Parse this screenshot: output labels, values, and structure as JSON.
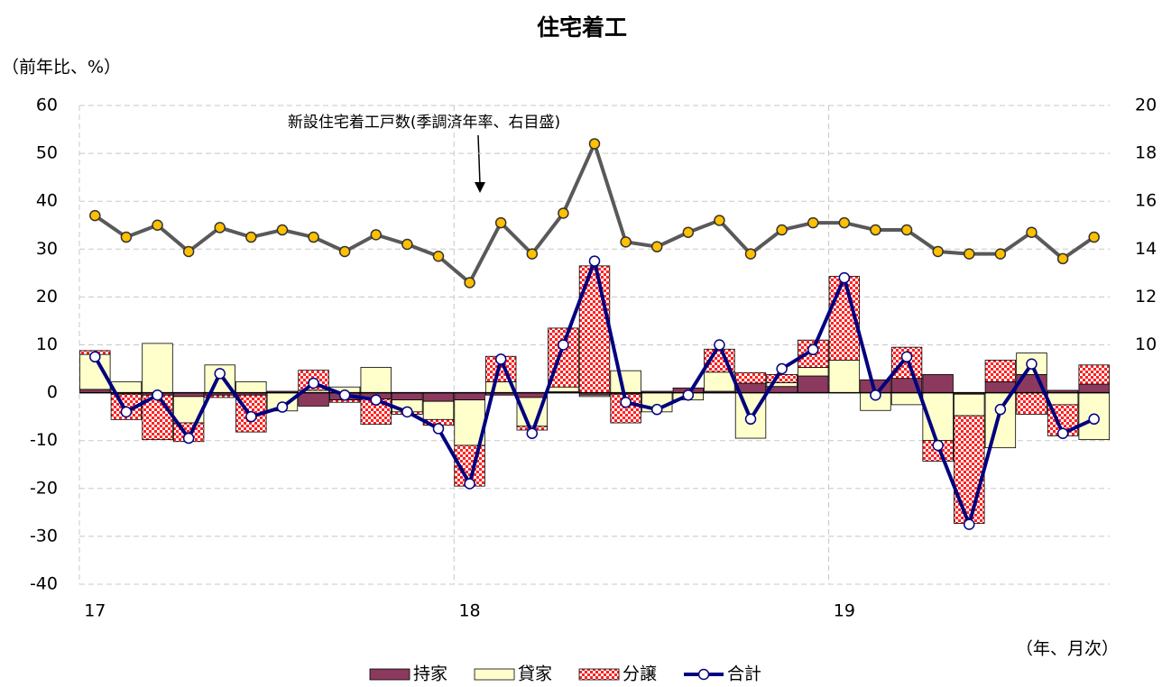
{
  "chart_data": {
    "type": "bar",
    "title": "住宅着工",
    "y_label": "（前年比、%）",
    "x_label": "（年、月次）",
    "annotation": "新設住宅着工戸数(季調済年率、右目盛)",
    "categories": [
      "17",
      null,
      null,
      null,
      null,
      null,
      null,
      null,
      null,
      null,
      null,
      null,
      "18",
      null,
      null,
      null,
      null,
      null,
      null,
      null,
      null,
      null,
      null,
      null,
      "19",
      null,
      null,
      null,
      null,
      null,
      null,
      null,
      null
    ],
    "series": [
      {
        "name": "持家",
        "type": "bar",
        "color": "#8b3a5e",
        "values": [
          0.7,
          -0.3,
          -0.5,
          -0.8,
          -0.5,
          -0.5,
          0.3,
          -2.8,
          -1.5,
          -1.3,
          -1.5,
          -1.8,
          -1.5,
          -0.5,
          -1,
          0.2,
          -0.5,
          -0.3,
          0.3,
          1.0,
          0.3,
          2.0,
          1.3,
          3.5,
          0,
          2.7,
          3.0,
          3.8,
          -0.3,
          2.3,
          3.8,
          0.5,
          1.8
        ]
      },
      {
        "name": "貸家",
        "type": "bar",
        "color": "#ffffcc",
        "values": [
          7.3,
          2.3,
          10.3,
          -5.5,
          5.8,
          2.3,
          -3.8,
          0.5,
          1.2,
          5.3,
          -2.5,
          -3.8,
          -9.5,
          2.3,
          -6,
          1.0,
          -0.3,
          4.6,
          -4,
          -1.5,
          4,
          -9.5,
          0.8,
          1.8,
          6.8,
          -3.7,
          -2.5,
          -10,
          -4.5,
          -11.5,
          4.5,
          -2.5,
          -9.8
        ]
      },
      {
        "name": "分譲",
        "type": "bar",
        "color": "#ff2020",
        "pattern": "checker",
        "values": [
          0.8,
          -5.3,
          -9.3,
          -3.9,
          -0.5,
          -7.7,
          0,
          4.2,
          -0.5,
          -5.3,
          -0.5,
          -1.2,
          -8.5,
          5.3,
          -0.8,
          12.3,
          26.5,
          -6,
          0,
          0,
          4.8,
          2.2,
          1.7,
          5.7,
          17.5,
          0,
          6.5,
          -4.3,
          -22.5,
          4.5,
          -4.5,
          -6.5,
          4
        ]
      },
      {
        "name": "合計",
        "type": "line",
        "color": "#000080",
        "marker_color": "#ffffff",
        "values": [
          7.5,
          -4,
          -0.5,
          -9.5,
          4,
          -5,
          -3,
          2,
          -0.5,
          -1.5,
          -4,
          -7.5,
          -19,
          7,
          -8.5,
          10,
          27.5,
          -2,
          -3.5,
          -0.5,
          10,
          -5.5,
          5,
          9,
          24,
          -0.5,
          7.5,
          -11,
          -27.5,
          -3.5,
          6,
          -8.5,
          -5.5
        ]
      },
      {
        "type": "line",
        "axis": "y2",
        "color": "#595959",
        "marker_color": "#ffc000",
        "values": [
          15.4,
          14.5,
          15.0,
          13.9,
          14.9,
          14.5,
          14.8,
          14.5,
          13.9,
          14.6,
          14.2,
          13.7,
          12.6,
          15.1,
          13.8,
          15.5,
          18.4,
          14.3,
          14.1,
          14.7,
          15.2,
          13.8,
          14.8,
          15.1,
          15.1,
          14.8,
          14.8,
          13.9,
          13.8,
          13.8,
          14.7,
          13.6,
          14.5
        ]
      }
    ],
    "ylim": [
      -40,
      60
    ],
    "yticks": [
      -40,
      -30,
      -20,
      -10,
      0,
      10,
      20,
      30,
      40,
      50,
      60
    ],
    "y2lim": [
      0,
      20
    ],
    "y2ticks": [
      10,
      12,
      14,
      16,
      18,
      20
    ],
    "grid": true,
    "legend": "bottom"
  }
}
